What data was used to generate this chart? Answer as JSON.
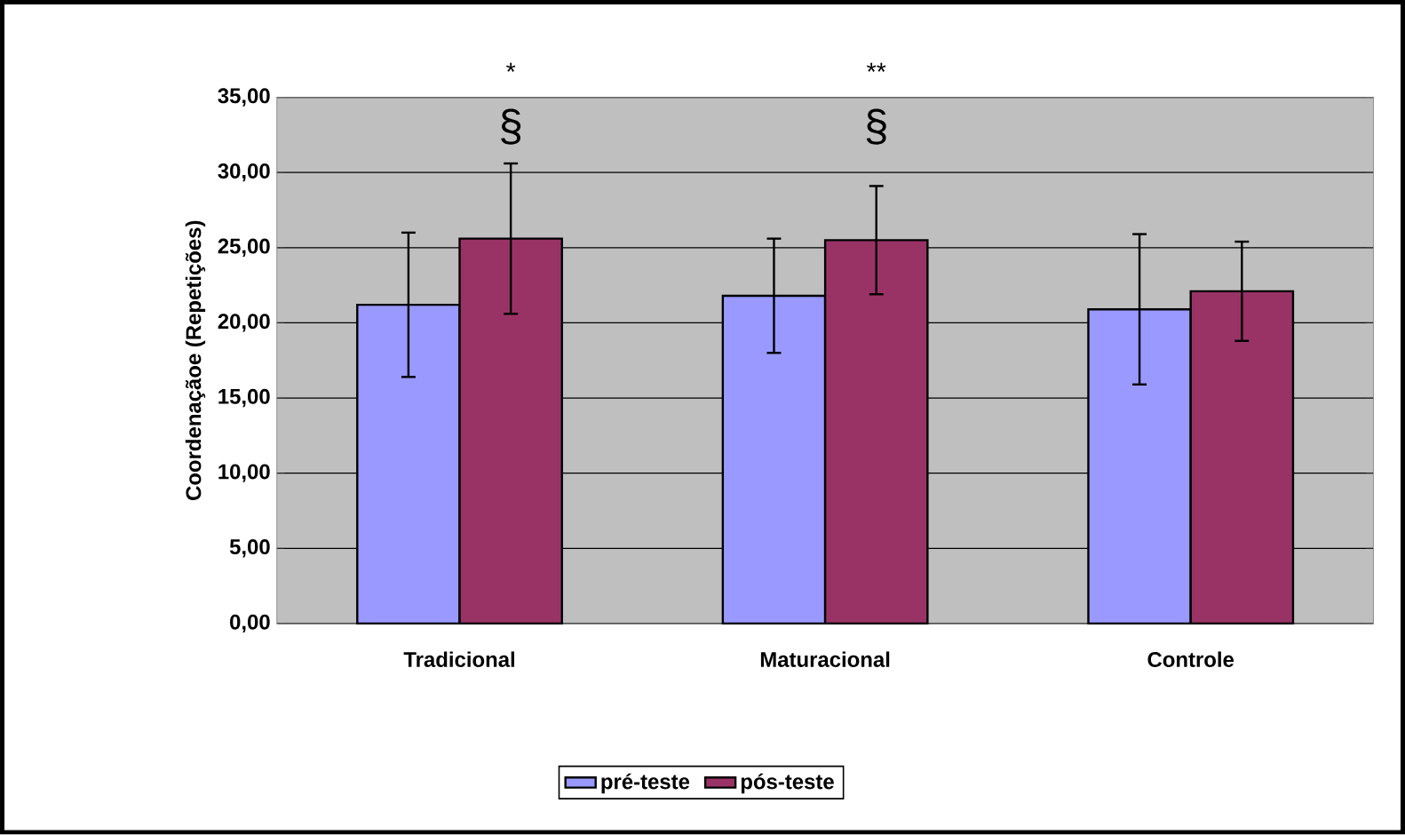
{
  "chart_data": {
    "type": "bar",
    "ylabel": "Coordenaçãoe (Repetições)",
    "categories": [
      "Tradicional",
      "Maturacional",
      "Controle"
    ],
    "series": [
      {
        "name": "pré-teste",
        "color": "#9999ff",
        "values": [
          21.2,
          21.8,
          20.9
        ],
        "errors": [
          4.8,
          3.8,
          5.0
        ]
      },
      {
        "name": "pós-teste",
        "color": "#993366",
        "values": [
          25.6,
          25.5,
          22.1
        ],
        "errors": [
          5.0,
          3.6,
          3.3
        ]
      }
    ],
    "ylim": [
      0,
      35
    ],
    "yticks": [
      {
        "value": 0,
        "label": "0,00"
      },
      {
        "value": 5,
        "label": "5,00"
      },
      {
        "value": 10,
        "label": "10,00"
      },
      {
        "value": 15,
        "label": "15,00"
      },
      {
        "value": 20,
        "label": "20,00"
      },
      {
        "value": 25,
        "label": "25,00"
      },
      {
        "value": 30,
        "label": "30,00"
      },
      {
        "value": 35,
        "label": "35,00"
      }
    ],
    "grid": "y",
    "legend": "bottom",
    "annotations": [
      "*",
      "§",
      "**",
      "§"
    ]
  }
}
